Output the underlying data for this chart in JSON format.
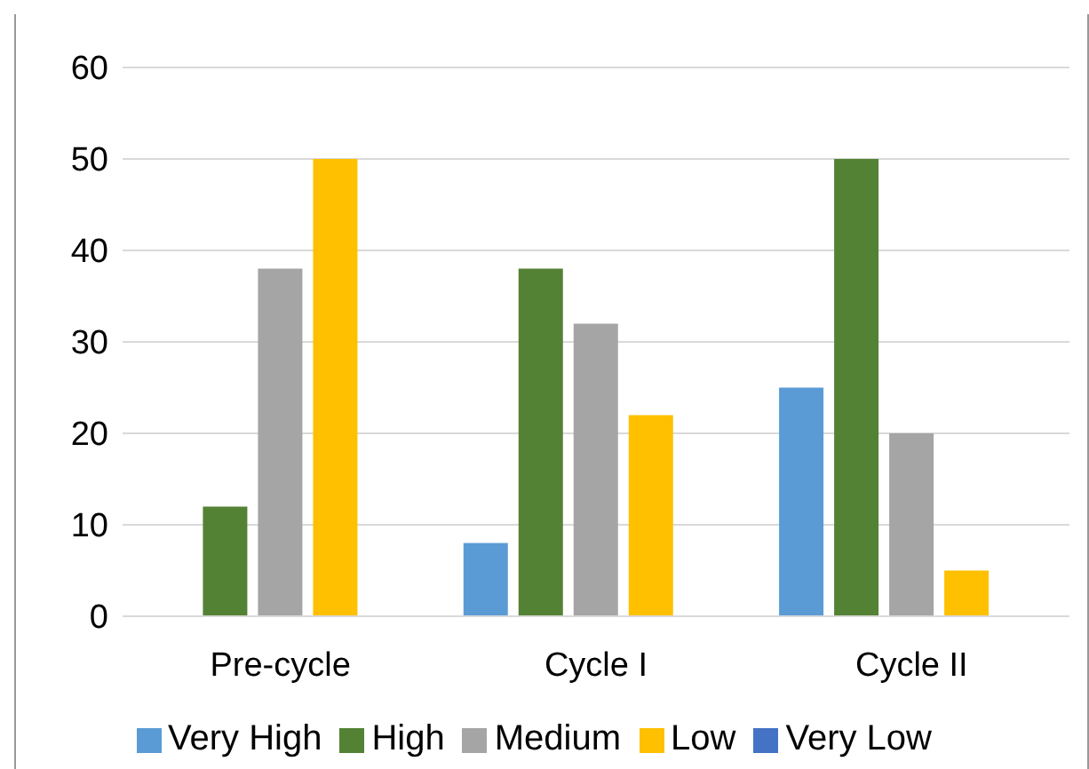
{
  "chart_data": {
    "type": "bar",
    "categories": [
      "Pre-cycle",
      "Cycle I",
      "Cycle II"
    ],
    "series": [
      {
        "name": "Very High",
        "color": "#5b9bd5",
        "values": [
          0,
          8,
          25
        ]
      },
      {
        "name": "High",
        "color": "#548235",
        "values": [
          12,
          38,
          50
        ]
      },
      {
        "name": "Medium",
        "color": "#a5a5a5",
        "values": [
          38,
          32,
          20
        ]
      },
      {
        "name": "Low",
        "color": "#ffc000",
        "values": [
          50,
          22,
          5
        ]
      },
      {
        "name": "Very Low",
        "color": "#4472c4",
        "values": [
          0,
          0,
          0
        ]
      }
    ],
    "ylim": [
      0,
      60
    ],
    "yticks": [
      0,
      10,
      20,
      30,
      40,
      50,
      60
    ],
    "grid": "y",
    "legend": "bottom"
  }
}
